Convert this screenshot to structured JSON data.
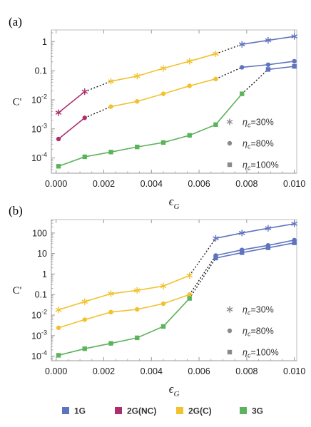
{
  "chart_data": [
    {
      "panel": "(a)",
      "type": "line",
      "ylabel": "C'",
      "xlabel": "ϵ_G",
      "yscale": "log",
      "xlim": [
        -0.0002,
        0.0101
      ],
      "ylim": [
        3e-05,
        2.5
      ],
      "xticks": [
        {
          "v": 0.0,
          "label": "0.000"
        },
        {
          "v": 0.002,
          "label": "0.002"
        },
        {
          "v": 0.004,
          "label": "0.004"
        },
        {
          "v": 0.006,
          "label": "0.006"
        },
        {
          "v": 0.008,
          "label": "0.008"
        },
        {
          "v": 0.01,
          "label": "0.010"
        }
      ],
      "yticks": [
        {
          "v": 0.0001,
          "base": "10",
          "exp": "-4"
        },
        {
          "v": 0.001,
          "base": "10",
          "exp": "-3"
        },
        {
          "v": 0.01,
          "base": "10",
          "exp": "-2"
        },
        {
          "v": 0.1,
          "base": "0.1",
          "exp": ""
        },
        {
          "v": 1,
          "base": "1",
          "exp": ""
        }
      ],
      "series": [
        {
          "gen": "2G(NC)",
          "marker": "star",
          "points": [
            [
              0.0001,
              0.0036
            ],
            [
              0.0012,
              0.019
            ]
          ]
        },
        {
          "gen": "2G(NC)",
          "marker": "circle",
          "points": [
            [
              0.0001,
              0.00045
            ],
            [
              0.0012,
              0.0024
            ]
          ]
        },
        {
          "gen": "2G(C)",
          "marker": "star",
          "points": [
            [
              0.0023,
              0.043
            ],
            [
              0.0034,
              0.065
            ],
            [
              0.0045,
              0.12
            ],
            [
              0.0056,
              0.21
            ],
            [
              0.0067,
              0.38
            ]
          ]
        },
        {
          "gen": "2G(C)",
          "marker": "circle",
          "points": [
            [
              0.0023,
              0.0058
            ],
            [
              0.0034,
              0.0088
            ],
            [
              0.0045,
              0.016
            ],
            [
              0.0056,
              0.03
            ],
            [
              0.0067,
              0.052
            ]
          ]
        },
        {
          "gen": "3G",
          "marker": "square",
          "points": [
            [
              0.0001,
              5.2e-05
            ],
            [
              0.0012,
              0.00011
            ],
            [
              0.0023,
              0.00016
            ],
            [
              0.0034,
              0.00024
            ],
            [
              0.0045,
              0.00034
            ],
            [
              0.0056,
              0.0006
            ],
            [
              0.0067,
              0.0014
            ],
            [
              0.0078,
              0.016
            ]
          ]
        },
        {
          "gen": "1G",
          "marker": "star",
          "points": [
            [
              0.0078,
              0.8
            ],
            [
              0.0089,
              1.1
            ],
            [
              0.01,
              1.5
            ]
          ]
        },
        {
          "gen": "1G",
          "marker": "circle",
          "points": [
            [
              0.0078,
              0.13
            ],
            [
              0.0089,
              0.16
            ],
            [
              0.01,
              0.21
            ]
          ]
        },
        {
          "gen": "1G",
          "marker": "square",
          "points": [
            [
              0.0089,
              0.11
            ],
            [
              0.01,
              0.14
            ]
          ]
        }
      ],
      "transitions": [
        [
          [
            0.0012,
            0.019
          ],
          [
            0.0023,
            0.043
          ]
        ],
        [
          [
            0.0012,
            0.0024
          ],
          [
            0.0023,
            0.0058
          ]
        ],
        [
          [
            0.0067,
            0.38
          ],
          [
            0.0078,
            0.8
          ]
        ],
        [
          [
            0.0067,
            0.052
          ],
          [
            0.0078,
            0.13
          ]
        ],
        [
          [
            0.0078,
            0.016
          ],
          [
            0.0089,
            0.11
          ]
        ]
      ]
    },
    {
      "panel": "(b)",
      "type": "line",
      "ylabel": "C'",
      "xlabel": "ϵ_G",
      "yscale": "log",
      "xlim": [
        -0.0002,
        0.0101
      ],
      "ylim": [
        6e-05,
        450
      ],
      "xticks": [
        {
          "v": 0.0,
          "label": "0.000"
        },
        {
          "v": 0.002,
          "label": "0.002"
        },
        {
          "v": 0.004,
          "label": "0.004"
        },
        {
          "v": 0.006,
          "label": "0.006"
        },
        {
          "v": 0.008,
          "label": "0.008"
        },
        {
          "v": 0.01,
          "label": "0.010"
        }
      ],
      "yticks": [
        {
          "v": 0.0001,
          "base": "10",
          "exp": "-4"
        },
        {
          "v": 0.001,
          "base": "10",
          "exp": "-3"
        },
        {
          "v": 0.01,
          "base": "10",
          "exp": "-2"
        },
        {
          "v": 0.1,
          "base": "0.1",
          "exp": ""
        },
        {
          "v": 1,
          "base": "1",
          "exp": ""
        },
        {
          "v": 10,
          "base": "10",
          "exp": ""
        },
        {
          "v": 100,
          "base": "100",
          "exp": ""
        }
      ],
      "series": [
        {
          "gen": "2G(C)",
          "marker": "star",
          "points": [
            [
              0.0001,
              0.018
            ],
            [
              0.0012,
              0.045
            ],
            [
              0.0023,
              0.11
            ],
            [
              0.0034,
              0.16
            ],
            [
              0.0045,
              0.26
            ],
            [
              0.0056,
              0.85
            ]
          ]
        },
        {
          "gen": "2G(C)",
          "marker": "circle",
          "points": [
            [
              0.0001,
              0.0024
            ],
            [
              0.0012,
              0.006
            ],
            [
              0.0023,
              0.014
            ],
            [
              0.0034,
              0.019
            ],
            [
              0.0045,
              0.036
            ],
            [
              0.0056,
              0.1
            ]
          ]
        },
        {
          "gen": "3G",
          "marker": "square",
          "points": [
            [
              0.0001,
              0.00011
            ],
            [
              0.0012,
              0.00023
            ],
            [
              0.0023,
              0.00042
            ],
            [
              0.0034,
              0.00078
            ],
            [
              0.0045,
              0.0028
            ],
            [
              0.0056,
              0.065
            ]
          ]
        },
        {
          "gen": "1G",
          "marker": "star",
          "points": [
            [
              0.0067,
              55
            ],
            [
              0.0078,
              100
            ],
            [
              0.0089,
              170
            ],
            [
              0.01,
              280
            ]
          ]
        },
        {
          "gen": "1G",
          "marker": "circle",
          "points": [
            [
              0.0067,
              8
            ],
            [
              0.0078,
              15
            ],
            [
              0.0089,
              25
            ],
            [
              0.01,
              45
            ]
          ]
        },
        {
          "gen": "1G",
          "marker": "square",
          "points": [
            [
              0.0067,
              6
            ],
            [
              0.0078,
              11
            ],
            [
              0.0089,
              19
            ],
            [
              0.01,
              33
            ]
          ]
        }
      ],
      "transitions": [
        [
          [
            0.0056,
            0.85
          ],
          [
            0.0067,
            55
          ]
        ],
        [
          [
            0.0056,
            0.1
          ],
          [
            0.0067,
            8
          ]
        ],
        [
          [
            0.0045,
            0.0028
          ],
          [
            0.0056,
            0.065
          ]
        ],
        [
          [
            0.0056,
            0.065
          ],
          [
            0.0067,
            6
          ]
        ]
      ]
    }
  ],
  "colors": {
    "1G": "#5f74bf",
    "2G(NC)": "#ad2e6c",
    "2G(C)": "#f2c12e",
    "3G": "#5bb35b",
    "axis": "#9a9a9a",
    "frame": "#bdbdbd",
    "transition": "#111111"
  },
  "marker_legend": [
    {
      "marker": "star",
      "label": "η_c=30%"
    },
    {
      "marker": "circle",
      "label": "η_c=80%"
    },
    {
      "marker": "square",
      "label": "η_c=100%"
    }
  ],
  "series_legend": [
    {
      "key": "1G",
      "label": "1G"
    },
    {
      "key": "2G(NC)",
      "label": "2G(NC)"
    },
    {
      "key": "2G(C)",
      "label": "2G(C)"
    },
    {
      "key": "3G",
      "label": "3G"
    }
  ]
}
